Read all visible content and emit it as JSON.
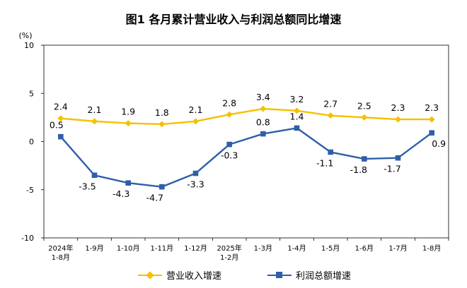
{
  "chart_data": {
    "type": "line",
    "title": "图1  各月累计营业收入与利润总额同比增速",
    "ylabel": "(%)",
    "xlabel": "",
    "categories": [
      "2024年\n1-8月",
      "1-9月",
      "1-10月",
      "1-11月",
      "1-12月",
      "2025年\n1-2月",
      "1-3月",
      "1-4月",
      "1-5月",
      "1-6月",
      "1-7月",
      "1-8月"
    ],
    "ylim": [
      -10,
      10
    ],
    "yticks": [
      10,
      5,
      0,
      -5,
      -10
    ],
    "grid": false,
    "legend_position": "bottom",
    "series": [
      {
        "name": "营业收入增速",
        "color": "#F5C000",
        "marker": "diamond",
        "values": [
          2.4,
          2.1,
          1.9,
          1.8,
          2.1,
          2.8,
          3.4,
          3.2,
          2.7,
          2.5,
          2.3,
          2.3
        ],
        "labels": [
          "2.4",
          "2.1",
          "1.9",
          "1.8",
          "2.1",
          "2.8",
          "3.4",
          "3.2",
          "2.7",
          "2.5",
          "2.3",
          "2.3"
        ]
      },
      {
        "name": "利润总额增速",
        "color": "#2E5FA8",
        "marker": "square",
        "values": [
          0.5,
          -3.5,
          -4.3,
          -4.7,
          -3.3,
          -0.3,
          0.8,
          1.4,
          -1.1,
          -1.8,
          -1.7,
          0.9
        ],
        "labels": [
          "0.5",
          "-3.5",
          "-4.3",
          "-4.7",
          "-3.3",
          "-0.3",
          "0.8",
          "1.4",
          "-1.1",
          "-1.8",
          "-1.7",
          "0.9"
        ]
      }
    ]
  }
}
